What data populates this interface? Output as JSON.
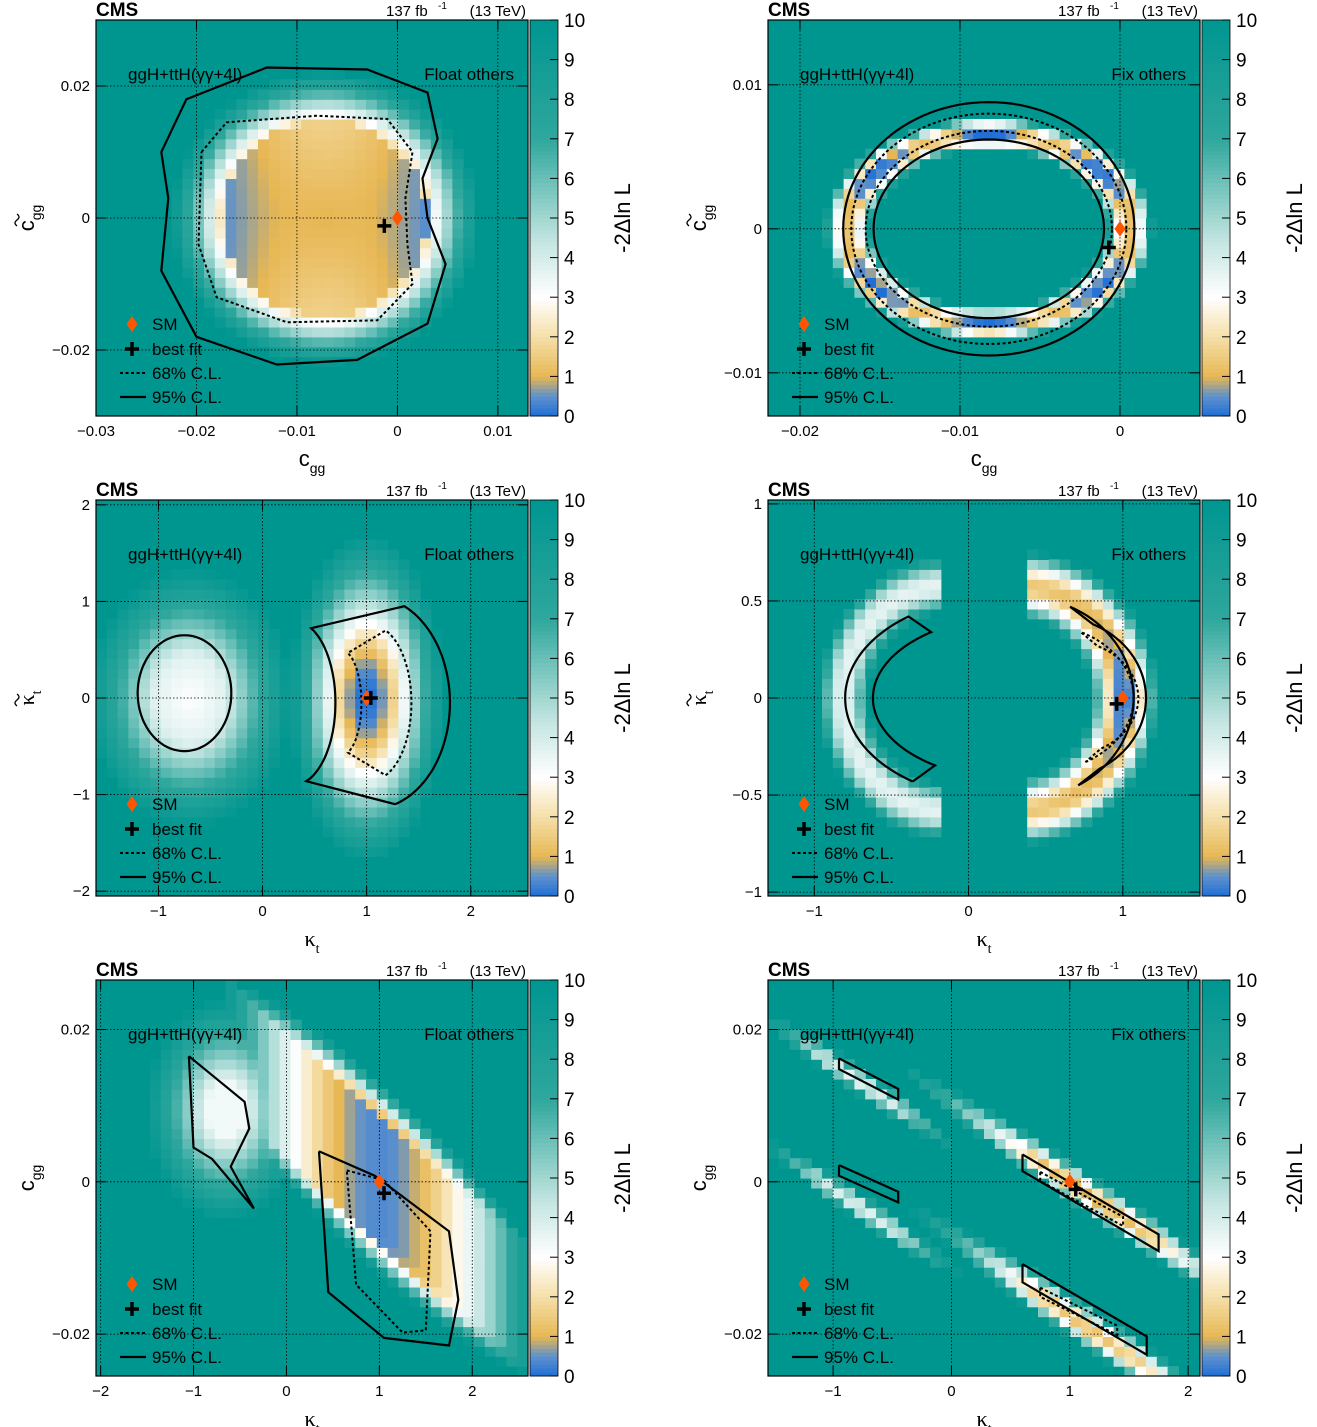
{
  "chart_data": [
    {
      "type": "heatmap",
      "experiment": "CMS",
      "luminosity": "137 fb",
      "lumi_exp": "-1",
      "energy": "(13 TeV)",
      "process": "ggH+ttH(γγ+4l)",
      "mode": "Float others",
      "x_main": "c",
      "x_sub": "gg",
      "x_tilde": false,
      "x_greek": false,
      "y_main": "c",
      "y_sub": "gg",
      "y_tilde": true,
      "y_greek": false,
      "xlim": [
        -0.03,
        0.013
      ],
      "ylim": [
        -0.03,
        0.03
      ],
      "xticks": [
        -0.03,
        -0.02,
        -0.01,
        0,
        0.01
      ],
      "xtick_labels": [
        "−0.03",
        "−0.02",
        "−0.01",
        "0",
        "0.01"
      ],
      "yticks": [
        -0.02,
        0,
        0.02
      ],
      "ytick_labels": [
        "−0.02",
        "0",
        "0.02"
      ],
      "sm": [
        0,
        0
      ],
      "best_fit": [
        -0.0013,
        -0.0012
      ],
      "shape": "kidney"
    },
    {
      "type": "heatmap",
      "experiment": "CMS",
      "luminosity": "137 fb",
      "lumi_exp": "-1",
      "energy": "(13 TeV)",
      "process": "ggH+ttH(γγ+4l)",
      "mode": "Fix others",
      "x_main": "c",
      "x_sub": "gg",
      "x_tilde": false,
      "x_greek": false,
      "y_main": "c",
      "y_sub": "gg",
      "y_tilde": true,
      "y_greek": false,
      "xlim": [
        -0.022,
        0.005
      ],
      "ylim": [
        -0.013,
        0.0145
      ],
      "xticks": [
        -0.02,
        -0.01,
        0
      ],
      "xtick_labels": [
        "−0.02",
        "−0.01",
        "0"
      ],
      "yticks": [
        -0.01,
        0,
        0.01
      ],
      "ytick_labels": [
        "−0.01",
        "0",
        "0.01"
      ],
      "sm": [
        0,
        0
      ],
      "best_fit": [
        -0.0007,
        -0.0013
      ],
      "shape": "ring"
    },
    {
      "type": "heatmap",
      "experiment": "CMS",
      "luminosity": "137 fb",
      "lumi_exp": "-1",
      "energy": "(13 TeV)",
      "process": "ggH+ttH(γγ+4l)",
      "mode": "Float others",
      "x_main": "κ",
      "x_sub": "t",
      "x_tilde": false,
      "x_greek": true,
      "y_main": "κ",
      "y_sub": "t",
      "y_tilde": true,
      "y_greek": true,
      "xlim": [
        -1.6,
        2.55
      ],
      "ylim": [
        -2.05,
        2.05
      ],
      "xticks": [
        -1,
        0,
        1,
        2
      ],
      "xtick_labels": [
        "−1",
        "0",
        "1",
        "2"
      ],
      "yticks": [
        -2,
        -1,
        0,
        1,
        2
      ],
      "ytick_labels": [
        "−2",
        "−1",
        "0",
        "1",
        "2"
      ],
      "sm": [
        1,
        0
      ],
      "best_fit": [
        1.04,
        0
      ],
      "shape": "crescent-float"
    },
    {
      "type": "heatmap",
      "experiment": "CMS",
      "luminosity": "137 fb",
      "lumi_exp": "-1",
      "energy": "(13 TeV)",
      "process": "ggH+ttH(γγ+4l)",
      "mode": "Fix others",
      "x_main": "κ",
      "x_sub": "t",
      "x_tilde": false,
      "x_greek": true,
      "y_main": "κ",
      "y_sub": "t",
      "y_tilde": true,
      "y_greek": true,
      "xlim": [
        -1.3,
        1.5
      ],
      "ylim": [
        -1.02,
        1.02
      ],
      "xticks": [
        -1,
        0,
        1
      ],
      "xtick_labels": [
        "−1",
        "0",
        "1"
      ],
      "yticks": [
        -1,
        -0.5,
        0,
        0.5,
        1
      ],
      "ytick_labels": [
        "−1",
        "−0.5",
        "0",
        "0.5",
        "1"
      ],
      "sm": [
        1,
        0
      ],
      "best_fit": [
        0.96,
        -0.03
      ],
      "shape": "crescent-fix"
    },
    {
      "type": "heatmap",
      "experiment": "CMS",
      "luminosity": "137 fb",
      "lumi_exp": "-1",
      "energy": "(13 TeV)",
      "process": "ggH+ttH(γγ+4l)",
      "mode": "Float others",
      "x_main": "κ",
      "x_sub": "t",
      "x_tilde": false,
      "x_greek": true,
      "y_main": "c",
      "y_sub": "gg",
      "y_tilde": false,
      "y_greek": false,
      "xlim": [
        -2.05,
        2.6
      ],
      "ylim": [
        -0.0255,
        0.0265
      ],
      "xticks": [
        -2,
        -1,
        0,
        1,
        2
      ],
      "xtick_labels": [
        "−2",
        "−1",
        "0",
        "1",
        "2"
      ],
      "yticks": [
        -0.02,
        0,
        0.02
      ],
      "ytick_labels": [
        "−0.02",
        "0",
        "0.02"
      ],
      "sm": [
        1,
        0
      ],
      "best_fit": [
        1.05,
        -0.0015
      ],
      "shape": "band-float"
    },
    {
      "type": "heatmap",
      "experiment": "CMS",
      "luminosity": "137 fb",
      "lumi_exp": "-1",
      "energy": "(13 TeV)",
      "process": "ggH+ttH(γγ+4l)",
      "mode": "Fix others",
      "x_main": "κ",
      "x_sub": "t",
      "x_tilde": false,
      "x_greek": true,
      "y_main": "c",
      "y_sub": "gg",
      "y_tilde": false,
      "y_greek": false,
      "xlim": [
        -1.55,
        2.1
      ],
      "ylim": [
        -0.0255,
        0.0265
      ],
      "xticks": [
        -1,
        0,
        1,
        2
      ],
      "xtick_labels": [
        "−1",
        "0",
        "1",
        "2"
      ],
      "yticks": [
        -0.02,
        0,
        0.02
      ],
      "ytick_labels": [
        "−0.02",
        "0",
        "0.02"
      ],
      "sm": [
        1,
        0
      ],
      "best_fit": [
        1.05,
        -0.001
      ],
      "shape": "bands-fix"
    }
  ],
  "colorbar": {
    "label": "-2Δln L",
    "min": 0,
    "max": 10,
    "ticks": [
      "0",
      "1",
      "2",
      "3",
      "4",
      "5",
      "6",
      "7",
      "8",
      "9",
      "10"
    ],
    "stops": [
      {
        "v": 0,
        "c": "#1f6fd6"
      },
      {
        "v": 0.5,
        "c": "#5d91cc"
      },
      {
        "v": 1.0,
        "c": "#e7b754"
      },
      {
        "v": 2.0,
        "c": "#f5dfa8"
      },
      {
        "v": 3.0,
        "c": "#ffffff"
      },
      {
        "v": 4.5,
        "c": "#bfe3df"
      },
      {
        "v": 7.0,
        "c": "#2fa79d"
      },
      {
        "v": 10.0,
        "c": "#009690"
      }
    ]
  },
  "legend": {
    "sm": "SM",
    "best_fit": "best fit",
    "cl68": "68% C.L.",
    "cl95": "95% C.L."
  },
  "colors": {
    "sm_marker": "#ff5500",
    "background": "#009690"
  }
}
